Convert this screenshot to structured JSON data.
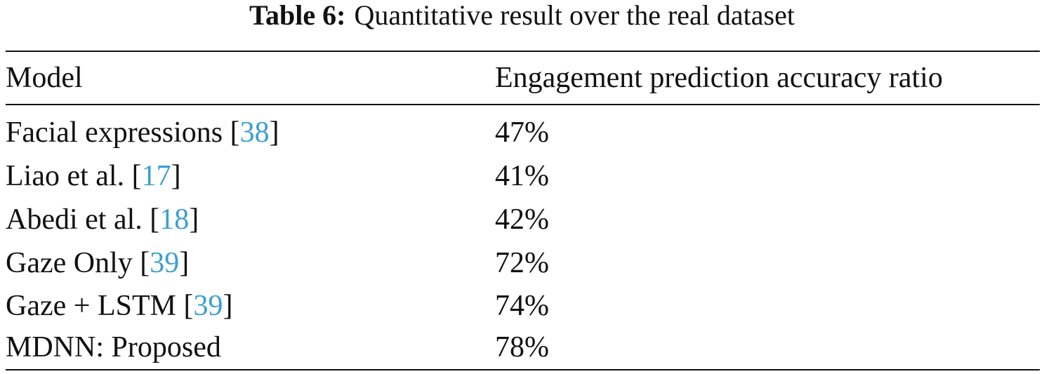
{
  "caption": {
    "label": "Table 6:",
    "text": "Quantitative result over the real dataset"
  },
  "table": {
    "header": [
      "Model",
      "Engagement prediction accuracy ratio"
    ],
    "rows": [
      {
        "model": [
          "Facial expressions [",
          "38",
          "]"
        ],
        "accuracy": "47%"
      },
      {
        "model": [
          "Liao et al. [",
          "17",
          "]"
        ],
        "accuracy": "41%"
      },
      {
        "model": [
          "Abedi et al. [",
          "18",
          "]"
        ],
        "accuracy": "42%"
      },
      {
        "model": [
          "Gaze Only [",
          "39",
          "]"
        ],
        "accuracy": "72%"
      },
      {
        "model": [
          "Gaze + LSTM [",
          "39",
          "]"
        ],
        "accuracy": "74%"
      },
      {
        "model": [
          "MDNN: Proposed"
        ],
        "accuracy": "78%"
      }
    ]
  }
}
